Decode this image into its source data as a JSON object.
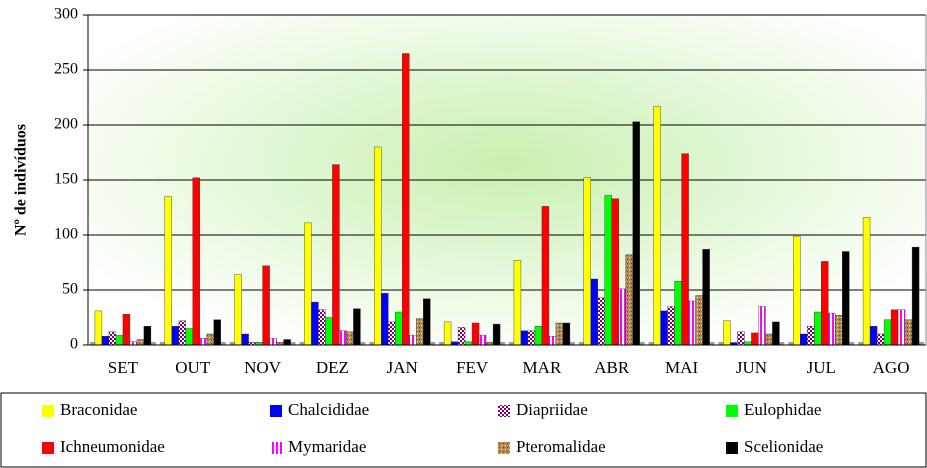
{
  "chart_data": {
    "type": "bar",
    "y_label": "Nº de indivíduos",
    "categories": [
      "SET",
      "OUT",
      "NOV",
      "DEZ",
      "JAN",
      "FEV",
      "MAR",
      "ABR",
      "MAI",
      "JUN",
      "JUL",
      "AGO"
    ],
    "series": [
      {
        "name": "Braconidae",
        "color": "#ffff00",
        "values": [
          31,
          135,
          64,
          111,
          180,
          21,
          77,
          152,
          217,
          22,
          99,
          116
        ]
      },
      {
        "name": "Chalcididae",
        "color": "#0000ff",
        "values": [
          8,
          17,
          10,
          39,
          47,
          3,
          13,
          60,
          31,
          2,
          10,
          17
        ]
      },
      {
        "name": "Diapriidae",
        "color": "#800080",
        "pattern": "checker",
        "values": [
          12,
          22,
          2,
          32,
          21,
          16,
          13,
          43,
          35,
          12,
          17,
          10
        ]
      },
      {
        "name": "Eulophidae",
        "color": "#00ff00",
        "values": [
          9,
          15,
          2,
          25,
          30,
          3,
          17,
          136,
          58,
          3,
          30,
          23
        ]
      },
      {
        "name": "Ichneumonidae",
        "color": "#ff0000",
        "values": [
          28,
          152,
          72,
          164,
          265,
          20,
          126,
          133,
          174,
          11,
          76,
          32
        ]
      },
      {
        "name": "Mymaridae",
        "color": "#ff00ff",
        "pattern": "stripes",
        "values": [
          3,
          6,
          6,
          13,
          9,
          9,
          8,
          51,
          40,
          35,
          29,
          32
        ]
      },
      {
        "name": "Pteromalidae",
        "color": "#b08850",
        "pattern": "dots",
        "values": [
          5,
          10,
          2,
          12,
          24,
          2,
          20,
          82,
          45,
          10,
          27,
          23
        ]
      },
      {
        "name": "Scelionidae",
        "color": "#000000",
        "values": [
          17,
          23,
          5,
          33,
          42,
          19,
          20,
          203,
          87,
          21,
          85,
          89
        ]
      }
    ],
    "ylim": [
      0,
      300
    ],
    "yticks": [
      0,
      50,
      100,
      150,
      200,
      250,
      300
    ],
    "grid": true,
    "legend": "bottom"
  }
}
